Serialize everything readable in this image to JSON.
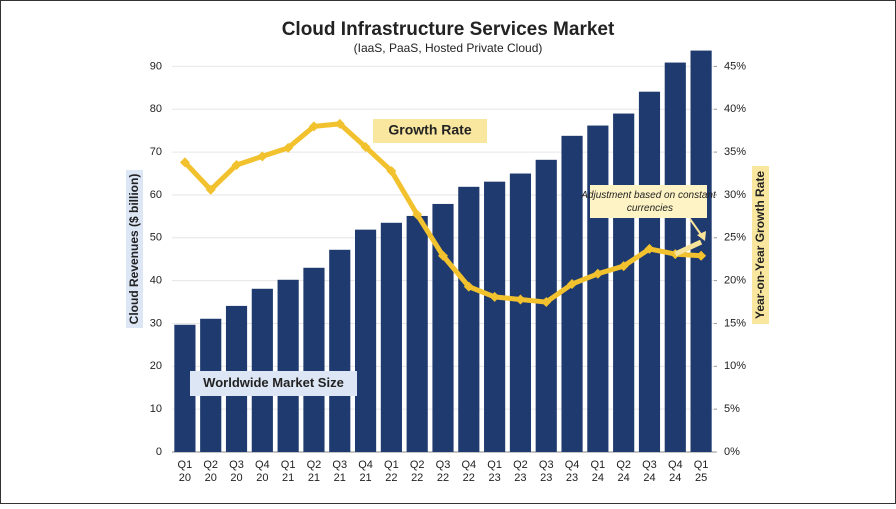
{
  "chart_data": {
    "type": "bar_line",
    "title": "Cloud Infrastructure Services Market",
    "subtitle": "(IaaS, PaaS, Hosted Private Cloud)",
    "y_label": "Cloud Revenues ($ billion)",
    "y2_label": "Year-on-Year Growth Rate",
    "categories": [
      [
        "Q1",
        "20"
      ],
      [
        "Q2",
        "20"
      ],
      [
        "Q3",
        "20"
      ],
      [
        "Q4",
        "20"
      ],
      [
        "Q1",
        "21"
      ],
      [
        "Q2",
        "21"
      ],
      [
        "Q3",
        "21"
      ],
      [
        "Q4",
        "21"
      ],
      [
        "Q1",
        "22"
      ],
      [
        "Q2",
        "22"
      ],
      [
        "Q3",
        "22"
      ],
      [
        "Q4",
        "22"
      ],
      [
        "Q1",
        "23"
      ],
      [
        "Q2",
        "23"
      ],
      [
        "Q3",
        "23"
      ],
      [
        "Q4",
        "23"
      ],
      [
        "Q1",
        "24"
      ],
      [
        "Q2",
        "24"
      ],
      [
        "Q3",
        "24"
      ],
      [
        "Q4",
        "24"
      ],
      [
        "Q1",
        "25"
      ]
    ],
    "series": [
      {
        "name": "Worldwide Market Size",
        "type": "bar",
        "color": "#1f3a6e",
        "values": [
          29.7,
          31.1,
          34.1,
          38.1,
          40.2,
          43.0,
          47.2,
          51.9,
          53.5,
          55.1,
          57.9,
          61.9,
          63.1,
          65.0,
          68.2,
          73.8,
          76.2,
          79.0,
          84.1,
          90.9,
          93.7
        ]
      },
      {
        "name": "Growth Rate",
        "type": "line",
        "axis": "y2",
        "color": "#f2c12e",
        "values": [
          33.8,
          30.6,
          33.5,
          34.5,
          35.5,
          38.0,
          38.3,
          35.6,
          32.8,
          27.7,
          22.9,
          19.3,
          18.1,
          17.8,
          17.5,
          19.6,
          20.8,
          21.7,
          23.7,
          23.1,
          22.9
        ]
      },
      {
        "name": "Adjustment based on constant currencies",
        "type": "line",
        "axis": "y2",
        "color": "#f7e39a",
        "values": [
          null,
          null,
          null,
          null,
          null,
          null,
          null,
          null,
          null,
          null,
          null,
          null,
          null,
          null,
          null,
          null,
          null,
          null,
          null,
          23.1,
          24.5
        ]
      }
    ],
    "ylim": [
      0,
      95
    ],
    "yticks": [
      0,
      10,
      20,
      30,
      40,
      50,
      60,
      70,
      80,
      90
    ],
    "y2lim": [
      0,
      47.5
    ],
    "y2ticks": [
      {
        "value": 0,
        "label": "0%"
      },
      {
        "value": 5,
        "label": "5%"
      },
      {
        "value": 10,
        "label": "10%"
      },
      {
        "value": 15,
        "label": "15%"
      },
      {
        "value": 20,
        "label": "20%"
      },
      {
        "value": 25,
        "label": "25%"
      },
      {
        "value": 30,
        "label": "30%"
      },
      {
        "value": 35,
        "label": "35%"
      },
      {
        "value": 40,
        "label": "40%"
      },
      {
        "value": 45,
        "label": "45%"
      }
    ],
    "grid": true
  }
}
